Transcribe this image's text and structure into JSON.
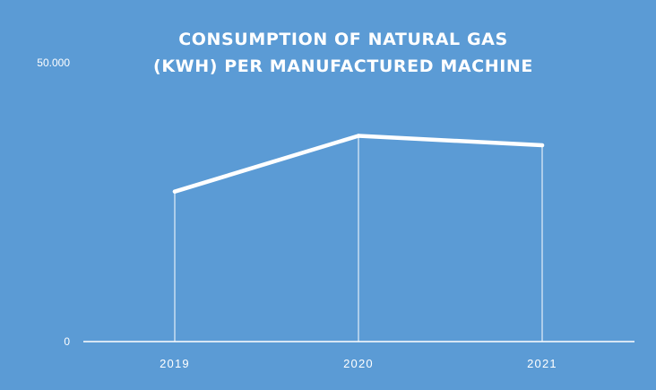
{
  "colors": {
    "background": "#5b9bd5",
    "line": "#ffffff",
    "axis": "#ffffff",
    "text": "#ffffff"
  },
  "chart_data": {
    "type": "line",
    "title_lines": [
      "CONSUMPTION OF NATURAL GAS",
      "(KWH) PER MANUFACTURED MACHINE"
    ],
    "xlabel": "",
    "ylabel": "",
    "categories": [
      "2019",
      "2020",
      "2021"
    ],
    "series": [
      {
        "values": [
          26900,
          36900,
          35200
        ]
      }
    ],
    "ylim": [
      0,
      50000
    ],
    "y_tick_labels": [
      {
        "value": 0,
        "label": "0"
      },
      {
        "value": 50000,
        "label": "50.000"
      }
    ],
    "drop_lines": true,
    "grid": false,
    "legend": "none"
  }
}
